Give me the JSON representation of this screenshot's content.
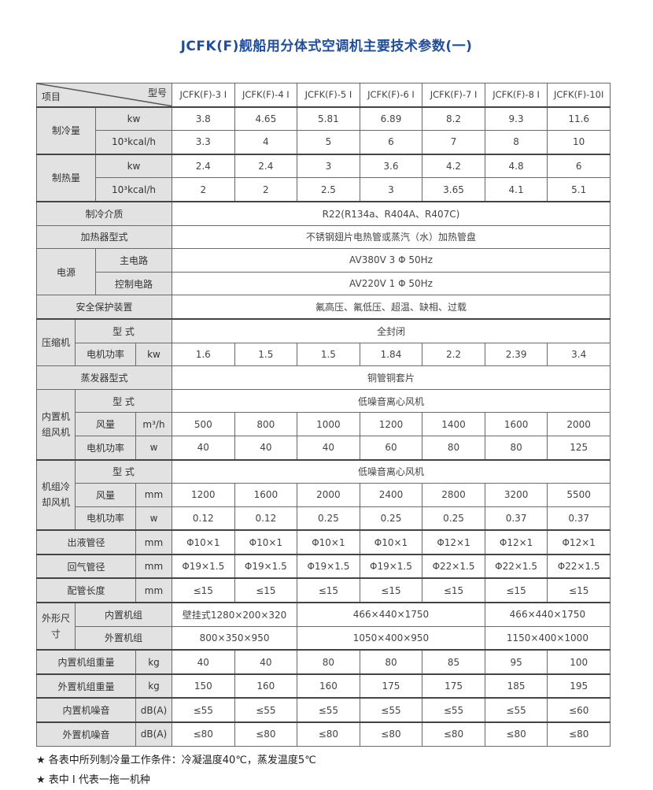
{
  "title": "JCFK(F)舰船用分体式空调机主要技术参数(一)",
  "header": {
    "item": "项目",
    "model": "型号",
    "models": [
      "JCFK(F)-3 I",
      "JCFK(F)-4 I",
      "JCFK(F)-5 I",
      "JCFK(F)-6 I",
      "JCFK(F)-7 I",
      "JCFK(F)-8 I",
      "JCFK(F)-10I"
    ]
  },
  "cooling": {
    "label": "制冷量",
    "unit_kw": "kw",
    "unit_kcal": "10³kcal/h",
    "kw": [
      "3.8",
      "4.65",
      "5.81",
      "6.89",
      "8.2",
      "9.3",
      "11.6"
    ],
    "kcal": [
      "3.3",
      "4",
      "5",
      "6",
      "7",
      "8",
      "10"
    ]
  },
  "heating": {
    "label": "制热量",
    "unit_kw": "kw",
    "unit_kcal": "10³kcal/h",
    "kw": [
      "2.4",
      "2.4",
      "3",
      "3.6",
      "4.2",
      "4.8",
      "6"
    ],
    "kcal": [
      "2",
      "2",
      "2.5",
      "3",
      "3.65",
      "4.1",
      "5.1"
    ]
  },
  "refrigerant": {
    "label": "制冷介质",
    "value": "R22(R134a、R404A、R407C)"
  },
  "heater": {
    "label": "加热器型式",
    "value": "不锈钢翅片电热管或蒸汽（水）加热管盘"
  },
  "power": {
    "label": "电源",
    "main_label": "主电路",
    "main": "AV380V 3 Φ 50Hz",
    "control_label": "控制电路",
    "control": "AV220V 1 Φ 50Hz"
  },
  "safety": {
    "label": "安全保护装置",
    "value": "氟高压、氟低压、超温、缺相、过载"
  },
  "compressor": {
    "label": "压缩机",
    "type_label": "型 式",
    "type": "全封闭",
    "power_label": "电机功率",
    "power_unit": "kw",
    "power": [
      "1.6",
      "1.5",
      "1.5",
      "1.84",
      "2.2",
      "2.39",
      "3.4"
    ]
  },
  "evaporator": {
    "label": "蒸发器型式",
    "value": "铜管铜套片"
  },
  "indoor_fan": {
    "label": "内置机组风机",
    "type_label": "型 式",
    "type": "低噪音离心风机",
    "air_label": "风量",
    "air_unit": "m³/h",
    "air": [
      "500",
      "800",
      "1000",
      "1200",
      "1400",
      "1600",
      "2000"
    ],
    "power_label": "电机功率",
    "power_unit": "w",
    "power": [
      "40",
      "40",
      "40",
      "60",
      "80",
      "80",
      "125"
    ]
  },
  "cooling_fan": {
    "label": "机组冷却风机",
    "type_label": "型 式",
    "type": "低噪音离心风机",
    "air_label": "风量",
    "air_unit": "mm",
    "air": [
      "1200",
      "1600",
      "2000",
      "2400",
      "2800",
      "3200",
      "5500"
    ],
    "power_label": "电机功率",
    "power_unit": "w",
    "power": [
      "0.12",
      "0.12",
      "0.25",
      "0.25",
      "0.25",
      "0.37",
      "0.37"
    ]
  },
  "liquid_pipe": {
    "label": "出液管径",
    "unit": "mm",
    "values": [
      "Φ10×1",
      "Φ10×1",
      "Φ10×1",
      "Φ10×1",
      "Φ12×1",
      "Φ12×1",
      "Φ12×1"
    ]
  },
  "gas_pipe": {
    "label": "回气管径",
    "unit": "mm",
    "values": [
      "Φ19×1.5",
      "Φ19×1.5",
      "Φ19×1.5",
      "Φ19×1.5",
      "Φ22×1.5",
      "Φ22×1.5",
      "Φ22×1.5"
    ]
  },
  "pipe_length": {
    "label": "配管长度",
    "unit": "mm",
    "values": [
      "≤15",
      "≤15",
      "≤15",
      "≤15",
      "≤15",
      "≤15",
      "≤15"
    ]
  },
  "dimensions": {
    "label": "外形尺寸",
    "indoor_label": "内置机组",
    "indoor": [
      "壁挂式1280×200×320",
      "466×440×1750",
      "466×440×1750"
    ],
    "outdoor_label": "外置机组",
    "outdoor": [
      "800×350×950",
      "1050×400×950",
      "1150×400×1000"
    ]
  },
  "indoor_weight": {
    "label": "内置机组重量",
    "unit": "kg",
    "values": [
      "40",
      "40",
      "80",
      "80",
      "85",
      "95",
      "100"
    ]
  },
  "outdoor_weight": {
    "label": "外置机组重量",
    "unit": "kg",
    "values": [
      "150",
      "160",
      "160",
      "175",
      "175",
      "185",
      "195"
    ]
  },
  "indoor_noise": {
    "label": "内置机噪音",
    "unit": "dB(A)",
    "values": [
      "≤55",
      "≤55",
      "≤55",
      "≤55",
      "≤55",
      "≤55",
      "≤60"
    ]
  },
  "outdoor_noise": {
    "label": "外置机噪音",
    "unit": "dB(A)",
    "values": [
      "≤80",
      "≤80",
      "≤80",
      "≤80",
      "≤80",
      "≤80",
      "≤80"
    ]
  },
  "notes": [
    "★ 各表中所列制冷量工作条件：冷凝温度40℃，蒸发温度5℃",
    "★ 表中 I 代表一拖一机种"
  ],
  "colors": {
    "title": "#1f4e9c",
    "label_bg": "#e2e2e2"
  }
}
